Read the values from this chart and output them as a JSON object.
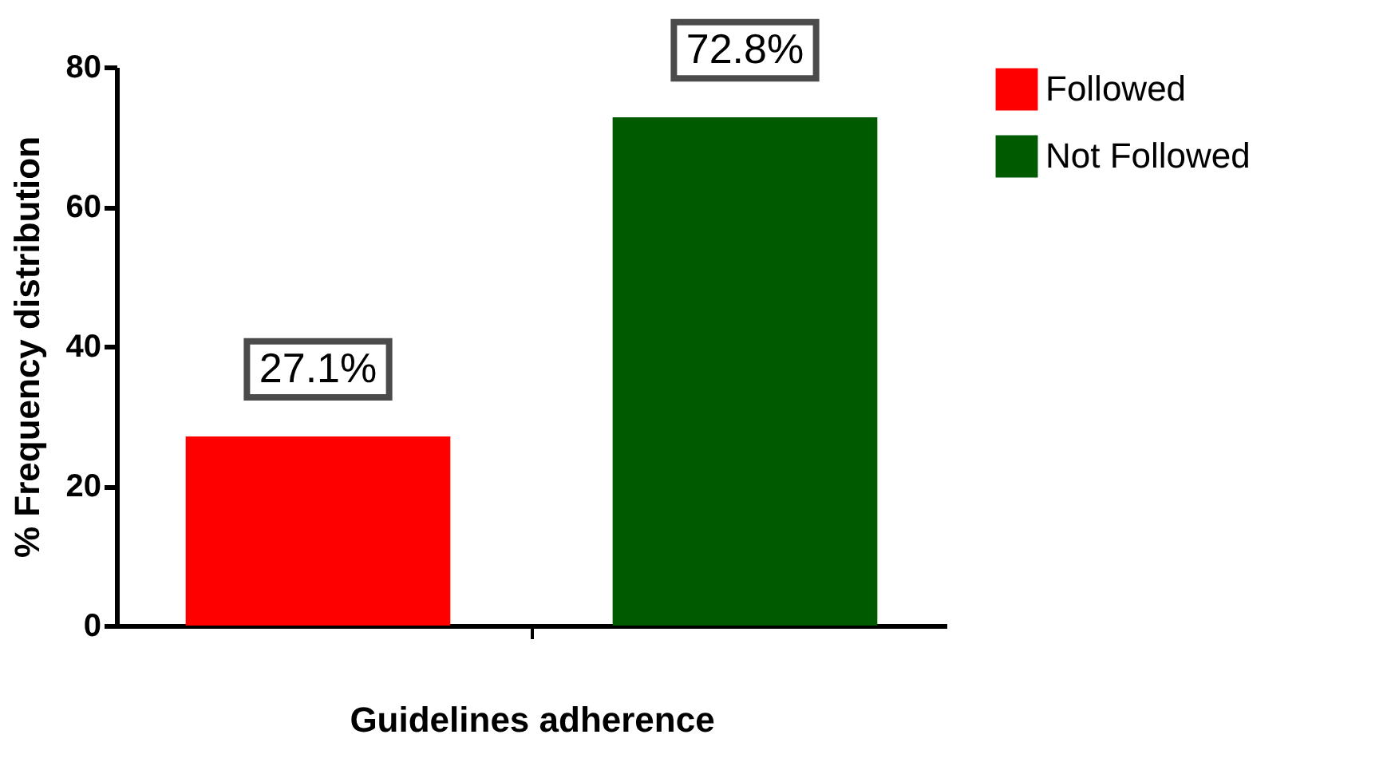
{
  "chart_data": {
    "type": "bar",
    "xlabel": "Guidelines adherence",
    "ylabel": "% Frequency distribution",
    "categories": [
      null
    ],
    "series": [
      {
        "name": "Followed",
        "color": "#ff0000",
        "values": [
          27.1
        ],
        "value_labels": [
          "27.1%"
        ]
      },
      {
        "name": "Not Followed",
        "color": "#005a00",
        "values": [
          72.8
        ],
        "value_labels": [
          "72.8%"
        ]
      }
    ],
    "ylim": [
      0,
      80
    ],
    "yticks": [
      0,
      20,
      40,
      60,
      80
    ],
    "grid": false,
    "legend": "top right",
    "tick_labels": "y"
  }
}
